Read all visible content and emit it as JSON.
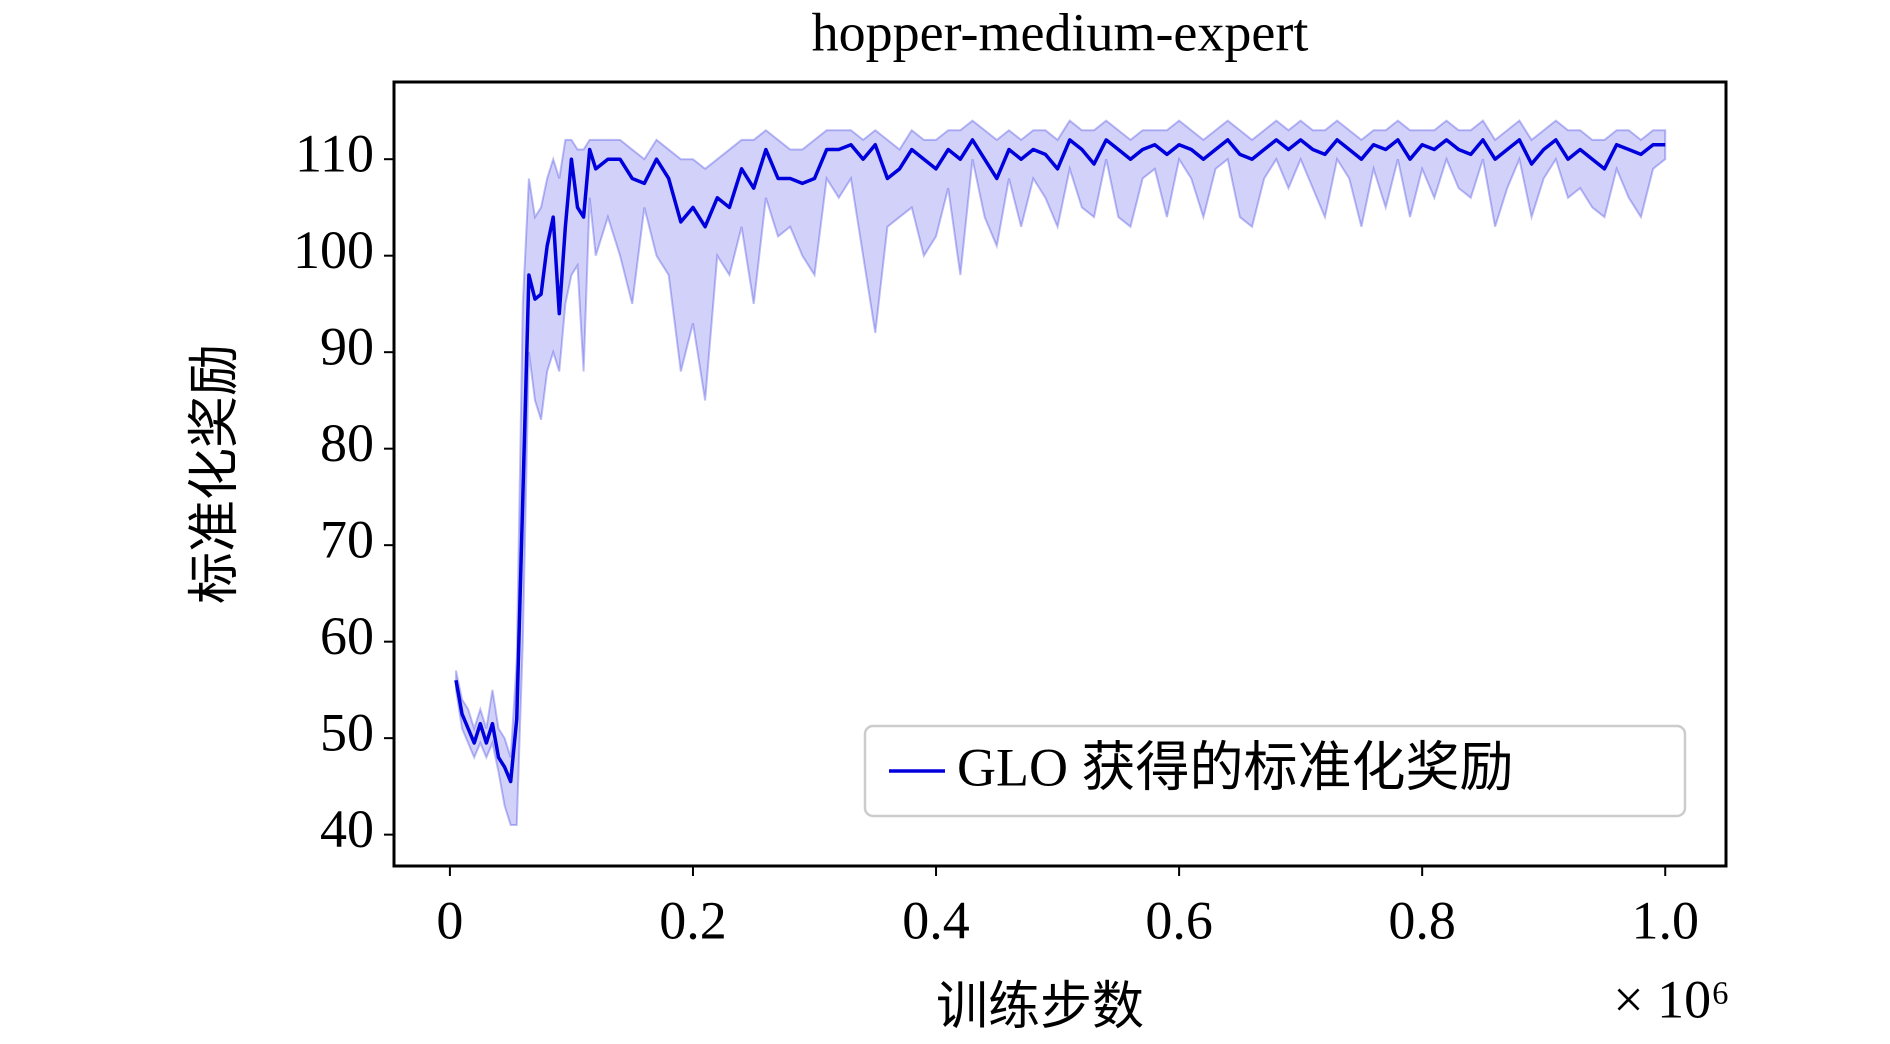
{
  "chart_data": {
    "type": "line",
    "title": "hopper-medium-expert",
    "xlabel": "训练步数",
    "ylabel": "标准化奖励",
    "x_offset_label": "× 10⁶",
    "legend": "lower right",
    "xlim": [
      -0.046,
      1.05
    ],
    "ylim": [
      36.75,
      118
    ],
    "xticks": [
      0,
      0.2,
      0.4,
      0.6,
      0.8,
      {
        "value": 1,
        "label": "1.0"
      }
    ],
    "yticks": [
      40,
      50,
      60,
      70,
      80,
      90,
      100,
      110
    ],
    "x": [
      0.005,
      0.01,
      0.015,
      0.02,
      0.025,
      0.03,
      0.035,
      0.04,
      0.045,
      0.05,
      0.055,
      0.06,
      0.065,
      0.07,
      0.075,
      0.08,
      0.085,
      0.09,
      0.095,
      0.1,
      0.105,
      0.11,
      0.115,
      0.12,
      0.13,
      0.14,
      0.15,
      0.16,
      0.17,
      0.18,
      0.19,
      0.2,
      0.21,
      0.22,
      0.23,
      0.24,
      0.25,
      0.26,
      0.27,
      0.28,
      0.29,
      0.3,
      0.31,
      0.32,
      0.33,
      0.34,
      0.35,
      0.36,
      0.37,
      0.38,
      0.39,
      0.4,
      0.41,
      0.42,
      0.43,
      0.44,
      0.45,
      0.46,
      0.47,
      0.48,
      0.49,
      0.5,
      0.51,
      0.52,
      0.53,
      0.54,
      0.55,
      0.56,
      0.57,
      0.58,
      0.59,
      0.6,
      0.61,
      0.62,
      0.63,
      0.64,
      0.65,
      0.66,
      0.67,
      0.68,
      0.69,
      0.7,
      0.71,
      0.72,
      0.73,
      0.74,
      0.75,
      0.76,
      0.77,
      0.78,
      0.79,
      0.8,
      0.81,
      0.82,
      0.83,
      0.84,
      0.85,
      0.86,
      0.87,
      0.88,
      0.89,
      0.9,
      0.91,
      0.92,
      0.93,
      0.94,
      0.95,
      0.96,
      0.97,
      0.98,
      0.99,
      1.0
    ],
    "series": [
      {
        "name": "GLO 获得的标准化奖励",
        "color": "#0000dd",
        "values": [
          56,
          52.5,
          51,
          49.5,
          51.5,
          49.5,
          51.5,
          48,
          47,
          45.5,
          52,
          75,
          98,
          95.5,
          96,
          101,
          104,
          94,
          103,
          110,
          105,
          104,
          111,
          109,
          110,
          110,
          108,
          107.5,
          110,
          108,
          103.5,
          105,
          103,
          106,
          105,
          109,
          107,
          111,
          108,
          108,
          107.5,
          108,
          111,
          111,
          111.5,
          110,
          111.5,
          108,
          109,
          111,
          110,
          109,
          111,
          110,
          112,
          110,
          108,
          111,
          110,
          111,
          110.5,
          109,
          112,
          111,
          109.5,
          112,
          111,
          110,
          111,
          111.5,
          110.5,
          111.5,
          111,
          110,
          111,
          112,
          110.5,
          110,
          111,
          112,
          111,
          112,
          111,
          110.5,
          112,
          111,
          110,
          111.5,
          111,
          112,
          110,
          111.5,
          111,
          112,
          111,
          110.5,
          112,
          110,
          111,
          112,
          109.5,
          111,
          112,
          110,
          111,
          110,
          109,
          111.5,
          111,
          110.5,
          111.5,
          111.5
        ],
        "lower": [
          55,
          51,
          49.5,
          48,
          49.5,
          48,
          49.5,
          46.5,
          43,
          41,
          41,
          60,
          90,
          85,
          83,
          88,
          90,
          88,
          95,
          98,
          99,
          88,
          106,
          100,
          104,
          100,
          95,
          105,
          100,
          98,
          88,
          93,
          85,
          100,
          98,
          103,
          95,
          106,
          102,
          103,
          100,
          98,
          108,
          106,
          108,
          100,
          92,
          103,
          104,
          105,
          100,
          102,
          107,
          98,
          110,
          104,
          101,
          108,
          103,
          108,
          106,
          103,
          109,
          105,
          104,
          110,
          104,
          103,
          108,
          109,
          104,
          110,
          108,
          104,
          109,
          110,
          104,
          103,
          108,
          110,
          107,
          110,
          107,
          104,
          110,
          108,
          103,
          109,
          105,
          110,
          104,
          109,
          106,
          110,
          107,
          106,
          110,
          103,
          107,
          110,
          104,
          108,
          110,
          106,
          107,
          105,
          104,
          109,
          106,
          104,
          109,
          110
        ],
        "upper": [
          57,
          54,
          53,
          51,
          53,
          51,
          55,
          51,
          50,
          48,
          58,
          95,
          108,
          104,
          105,
          108,
          110,
          108,
          112,
          112,
          111,
          111,
          112,
          112,
          112,
          112,
          111,
          110,
          112,
          111,
          110,
          110,
          109,
          110,
          111,
          112,
          112,
          113,
          112,
          111,
          111,
          112,
          113,
          113,
          113,
          112,
          113,
          112,
          111,
          113,
          112,
          112,
          113,
          113,
          114,
          113,
          112,
          113,
          112,
          113,
          113,
          112,
          114,
          113,
          113,
          114,
          113,
          112,
          113,
          113,
          113,
          114,
          113,
          112,
          113,
          114,
          113,
          112,
          113,
          114,
          113,
          114,
          113,
          113,
          114,
          113,
          112,
          113,
          113,
          114,
          113,
          113,
          113,
          114,
          113,
          113,
          114,
          112,
          113,
          114,
          112,
          113,
          114,
          113,
          113,
          112,
          112,
          113,
          113,
          112,
          113,
          113
        ]
      }
    ]
  }
}
